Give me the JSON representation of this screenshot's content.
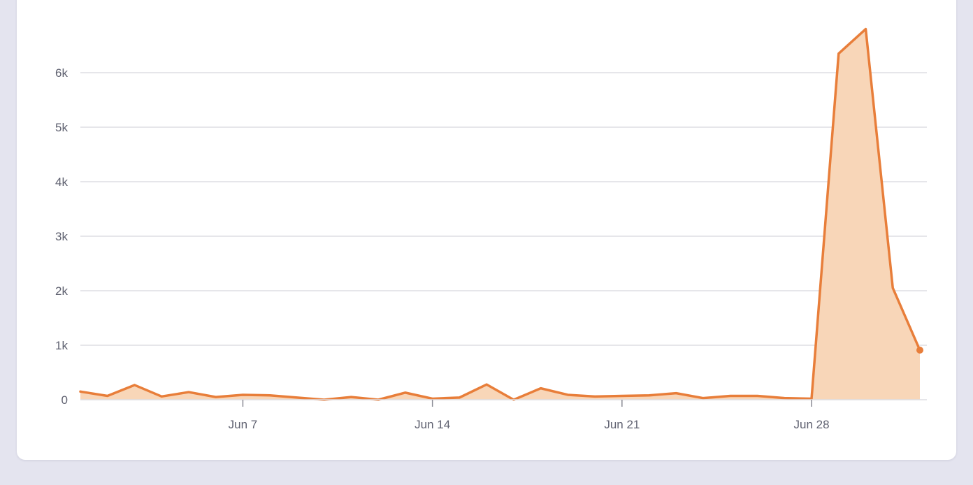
{
  "chart_data": {
    "type": "area",
    "title": "",
    "xlabel": "",
    "ylabel": "",
    "x": [
      "Jun 1",
      "Jun 2",
      "Jun 3",
      "Jun 4",
      "Jun 5",
      "Jun 6",
      "Jun 7",
      "Jun 8",
      "Jun 9",
      "Jun 10",
      "Jun 11",
      "Jun 12",
      "Jun 13",
      "Jun 14",
      "Jun 15",
      "Jun 16",
      "Jun 17",
      "Jun 18",
      "Jun 19",
      "Jun 20",
      "Jun 21",
      "Jun 22",
      "Jun 23",
      "Jun 24",
      "Jun 25",
      "Jun 26",
      "Jun 27",
      "Jun 28",
      "Jun 29",
      "Jun 30",
      "Jul 1",
      "Jul 2"
    ],
    "series": [
      {
        "values": [
          150,
          70,
          270,
          60,
          140,
          50,
          90,
          80,
          40,
          0,
          50,
          0,
          130,
          20,
          40,
          280,
          0,
          210,
          90,
          60,
          70,
          80,
          120,
          30,
          70,
          70,
          30,
          20,
          6350,
          6800,
          2050,
          910
        ]
      }
    ],
    "ylim": [
      0,
      6800
    ],
    "y_ticks": [
      {
        "value": 0,
        "label": "0"
      },
      {
        "value": 1000,
        "label": "1k"
      },
      {
        "value": 2000,
        "label": "2k"
      },
      {
        "value": 3000,
        "label": "3k"
      },
      {
        "value": 4000,
        "label": "4k"
      },
      {
        "value": 5000,
        "label": "5k"
      },
      {
        "value": 6000,
        "label": "6k"
      }
    ],
    "x_ticks": [
      {
        "index": 6,
        "label": "Jun 7"
      },
      {
        "index": 13,
        "label": "Jun 14"
      },
      {
        "index": 20,
        "label": "Jun 21"
      },
      {
        "index": 27,
        "label": "Jun 28"
      }
    ],
    "grid": true,
    "legend": "none",
    "colors": {
      "line": "#e87e3a",
      "fill": "#f8d6b8",
      "grid": "#dedee4",
      "axis": "#8a8b94",
      "tick_label": "#5f6170"
    }
  }
}
